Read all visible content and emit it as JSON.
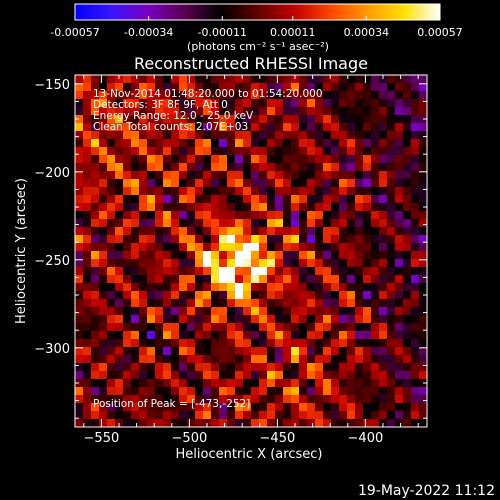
{
  "chart_data": {
    "type": "heatmap",
    "title": "Reconstructed RHESSI Image",
    "xlabel": "Heliocentric X (arcsec)",
    "ylabel": "Heliocentric Y (arcsec)",
    "xlim": [
      -565,
      -365
    ],
    "ylim": [
      -345,
      -145
    ],
    "x_ticks": [
      -550,
      -500,
      -450,
      -400
    ],
    "y_ticks": [
      -150,
      -200,
      -250,
      -300
    ],
    "colorbar": {
      "min": -0.00057,
      "max": 0.00057,
      "ticks": [
        "-0.00057",
        "-0.00034",
        "-0.00011",
        "0.00011",
        "0.00034",
        "0.00057"
      ],
      "label": "(photons cm⁻² s⁻¹ asec⁻²)",
      "colormap": [
        "#0000ff",
        "#3a14ff",
        "#7a00c0",
        "#5a0050",
        "#000000",
        "#600000",
        "#c00000",
        "#ff4400",
        "#ff9900",
        "#ffe000",
        "#ffffff"
      ]
    },
    "annotations": [
      "13-Nov-2014 01:48:20.000 to 01:54:20.000",
      "Detectors: 3F 8F 9F, Att 0",
      "Energy Range: 12.0 - 25.0 keV",
      "Clean    Total counts: 2.07E+03"
    ],
    "peak_label": "Position of Peak = [-473,-252]",
    "peak": {
      "x": -473,
      "y": -252
    },
    "grid": false
  },
  "footer": {
    "timestamp": "19-May-2022 11:12"
  }
}
